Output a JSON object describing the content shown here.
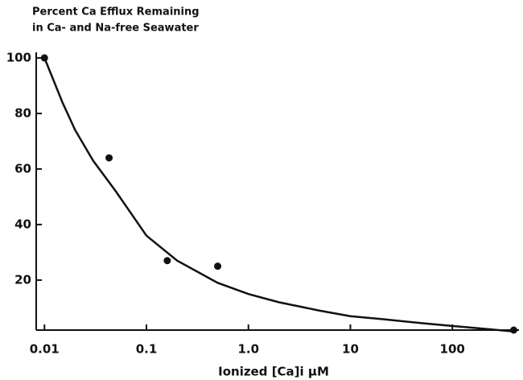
{
  "chart_data": {
    "type": "scatter",
    "title": [
      "Percent Ca Efflux Remaining",
      "in Ca- and Na-free Seawater"
    ],
    "xlabel": "Ionized [Ca]i μM",
    "xscale": "log",
    "xlim": [
      0.0083,
      450
    ],
    "ylim": [
      2,
      102
    ],
    "xticks": [
      0.01,
      0.1,
      {
        "value": 1,
        "label": "1.0"
      },
      10,
      100
    ],
    "yticks": [
      20,
      40,
      60,
      80,
      100
    ],
    "series": [
      {
        "type": "scatter",
        "color": "#111",
        "x": [
          0.01,
          0.043,
          0.16,
          0.5,
          400
        ],
        "values": [
          100,
          64,
          27,
          25,
          2
        ]
      },
      {
        "type": "line",
        "color": "#111",
        "x": [
          0.01,
          0.015,
          0.02,
          0.03,
          0.05,
          0.1,
          0.2,
          0.5,
          1,
          2,
          5,
          10,
          20,
          50,
          100,
          200,
          400
        ],
        "values": [
          100,
          84,
          74,
          63,
          52,
          36,
          27,
          19,
          15,
          12,
          9,
          7,
          6,
          4.5,
          3.5,
          2.5,
          1.5
        ]
      }
    ]
  }
}
